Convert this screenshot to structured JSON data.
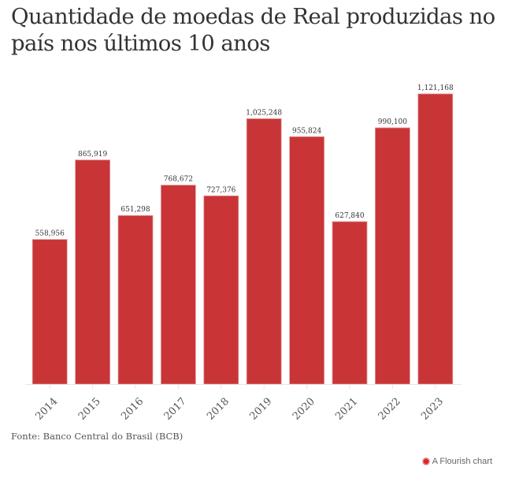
{
  "colors": {
    "bar": "#c93537",
    "bar_edge": "#e49a9b",
    "axis": "#e6e6e6",
    "text": "#333333",
    "flourish_logo": "#d9232a"
  },
  "footer": {
    "source": "Fonte: Banco Central do Brasil (BCB)",
    "credit": "A Flourish chart"
  },
  "chart_data": {
    "type": "bar",
    "title": "Quantidade de moedas de Real produzidas no país nos últimos 10 anos",
    "xlabel": "",
    "ylabel": "",
    "categories": [
      "2014",
      "2015",
      "2016",
      "2017",
      "2018",
      "2019",
      "2020",
      "2021",
      "2022",
      "2023"
    ],
    "values": [
      558956,
      865919,
      651298,
      768672,
      727376,
      1025248,
      955824,
      627840,
      990100,
      1121168
    ],
    "value_labels": [
      "558,956",
      "865,919",
      "651,298",
      "768,672",
      "727,376",
      "1,025,248",
      "955,824",
      "627,840",
      "990,100",
      "1,121,168"
    ],
    "ylim": [
      0,
      1121168
    ],
    "grid": false,
    "legend": "none",
    "x_tick_rotation_deg": -45
  }
}
